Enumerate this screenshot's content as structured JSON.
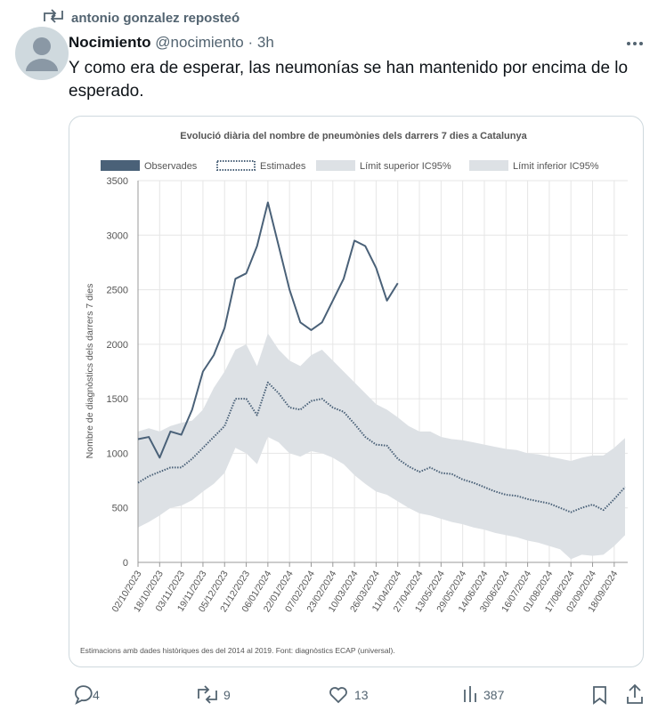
{
  "repost": "antonio gonzalez reposteó",
  "author": {
    "name": "Nocimiento",
    "handle": "@nocimiento",
    "separator": "·",
    "time": "3h"
  },
  "text": "Y como era de esperar, las neumonías se han mantenido por encima de lo esperado.",
  "chart_data": {
    "type": "line",
    "title": "Evolució diària del nombre de pneumònies dels darrers 7 dies a Catalunya",
    "y_label": "Nombre de diagnòstics dels darrers 7 dies",
    "footnote": "Estimacions amb dades històriques des del 2014 al 2019. Font: diagnòstics ECAP (universal).",
    "categories": [
      "02/10/2023",
      null,
      "18/10/2023",
      null,
      "03/11/2023",
      null,
      "19/11/2023",
      null,
      "05/12/2023",
      null,
      "21/12/2023",
      null,
      "06/01/2024",
      null,
      "22/01/2024",
      null,
      "07/02/2024",
      null,
      "23/02/2024",
      null,
      "10/03/2024",
      null,
      "26/03/2024",
      null,
      "11/04/2024",
      null,
      "27/04/2024",
      null,
      "13/05/2024",
      null,
      "29/05/2024",
      null,
      "14/06/2024",
      null,
      "30/06/2024",
      null,
      "16/07/2024",
      null,
      "01/08/2024",
      null,
      "17/08/2024",
      null,
      "02/09/2024",
      null,
      "18/09/2024",
      null
    ],
    "series": [
      {
        "name": "Observades",
        "color": "#4a6178",
        "style": "solid",
        "values": [
          1130,
          1150,
          960,
          1200,
          1170,
          1400,
          1750,
          1900,
          2150,
          2600,
          2650,
          2900,
          3300,
          2900,
          2500,
          2200,
          2130,
          2200,
          2400,
          2600,
          2950,
          2900,
          2700,
          2400,
          2560,
          null,
          null,
          null,
          null,
          null,
          null,
          null,
          null,
          null,
          null,
          null,
          null,
          null,
          null,
          null,
          null,
          null,
          null,
          null,
          null,
          null
        ]
      },
      {
        "name": "Estimades",
        "color": "#4a6178",
        "style": "dotted",
        "values": [
          730,
          790,
          830,
          870,
          870,
          950,
          1050,
          1150,
          1250,
          1500,
          1500,
          1350,
          1650,
          1550,
          1420,
          1400,
          1480,
          1500,
          1420,
          1380,
          1270,
          1150,
          1080,
          1070,
          950,
          880,
          830,
          870,
          820,
          810,
          760,
          730,
          690,
          650,
          620,
          610,
          580,
          560,
          540,
          500,
          460,
          500,
          530,
          480,
          580,
          690
        ]
      },
      {
        "name": "Límit superior IC95%",
        "color": "#dde1e5",
        "style": "band",
        "values": [
          1200,
          1230,
          1200,
          1250,
          1280,
          1300,
          1400,
          1600,
          1750,
          1950,
          2000,
          1800,
          2100,
          1950,
          1850,
          1800,
          1900,
          1950,
          1850,
          1750,
          1650,
          1550,
          1450,
          1400,
          1330,
          1250,
          1200,
          1200,
          1150,
          1130,
          1120,
          1100,
          1080,
          1060,
          1040,
          1030,
          1000,
          990,
          970,
          950,
          930,
          960,
          980,
          980,
          1050,
          1140
        ]
      },
      {
        "name": "Límit inferior IC95%",
        "color": "#dde1e5",
        "style": "band",
        "values": [
          320,
          370,
          430,
          500,
          520,
          570,
          650,
          720,
          820,
          1050,
          1000,
          900,
          1150,
          1100,
          1000,
          970,
          1020,
          1000,
          960,
          900,
          800,
          720,
          650,
          620,
          560,
          500,
          450,
          430,
          400,
          370,
          350,
          320,
          300,
          270,
          250,
          230,
          200,
          180,
          150,
          120,
          30,
          70,
          60,
          70,
          150,
          250
        ]
      }
    ],
    "ylim": [
      0,
      3500
    ],
    "yticks": [
      0,
      500,
      1000,
      1500,
      2000,
      2500,
      3000,
      3500
    ],
    "grid": true
  },
  "actions": {
    "replies": 4,
    "reposts": 9,
    "likes": 13,
    "views": 387
  }
}
